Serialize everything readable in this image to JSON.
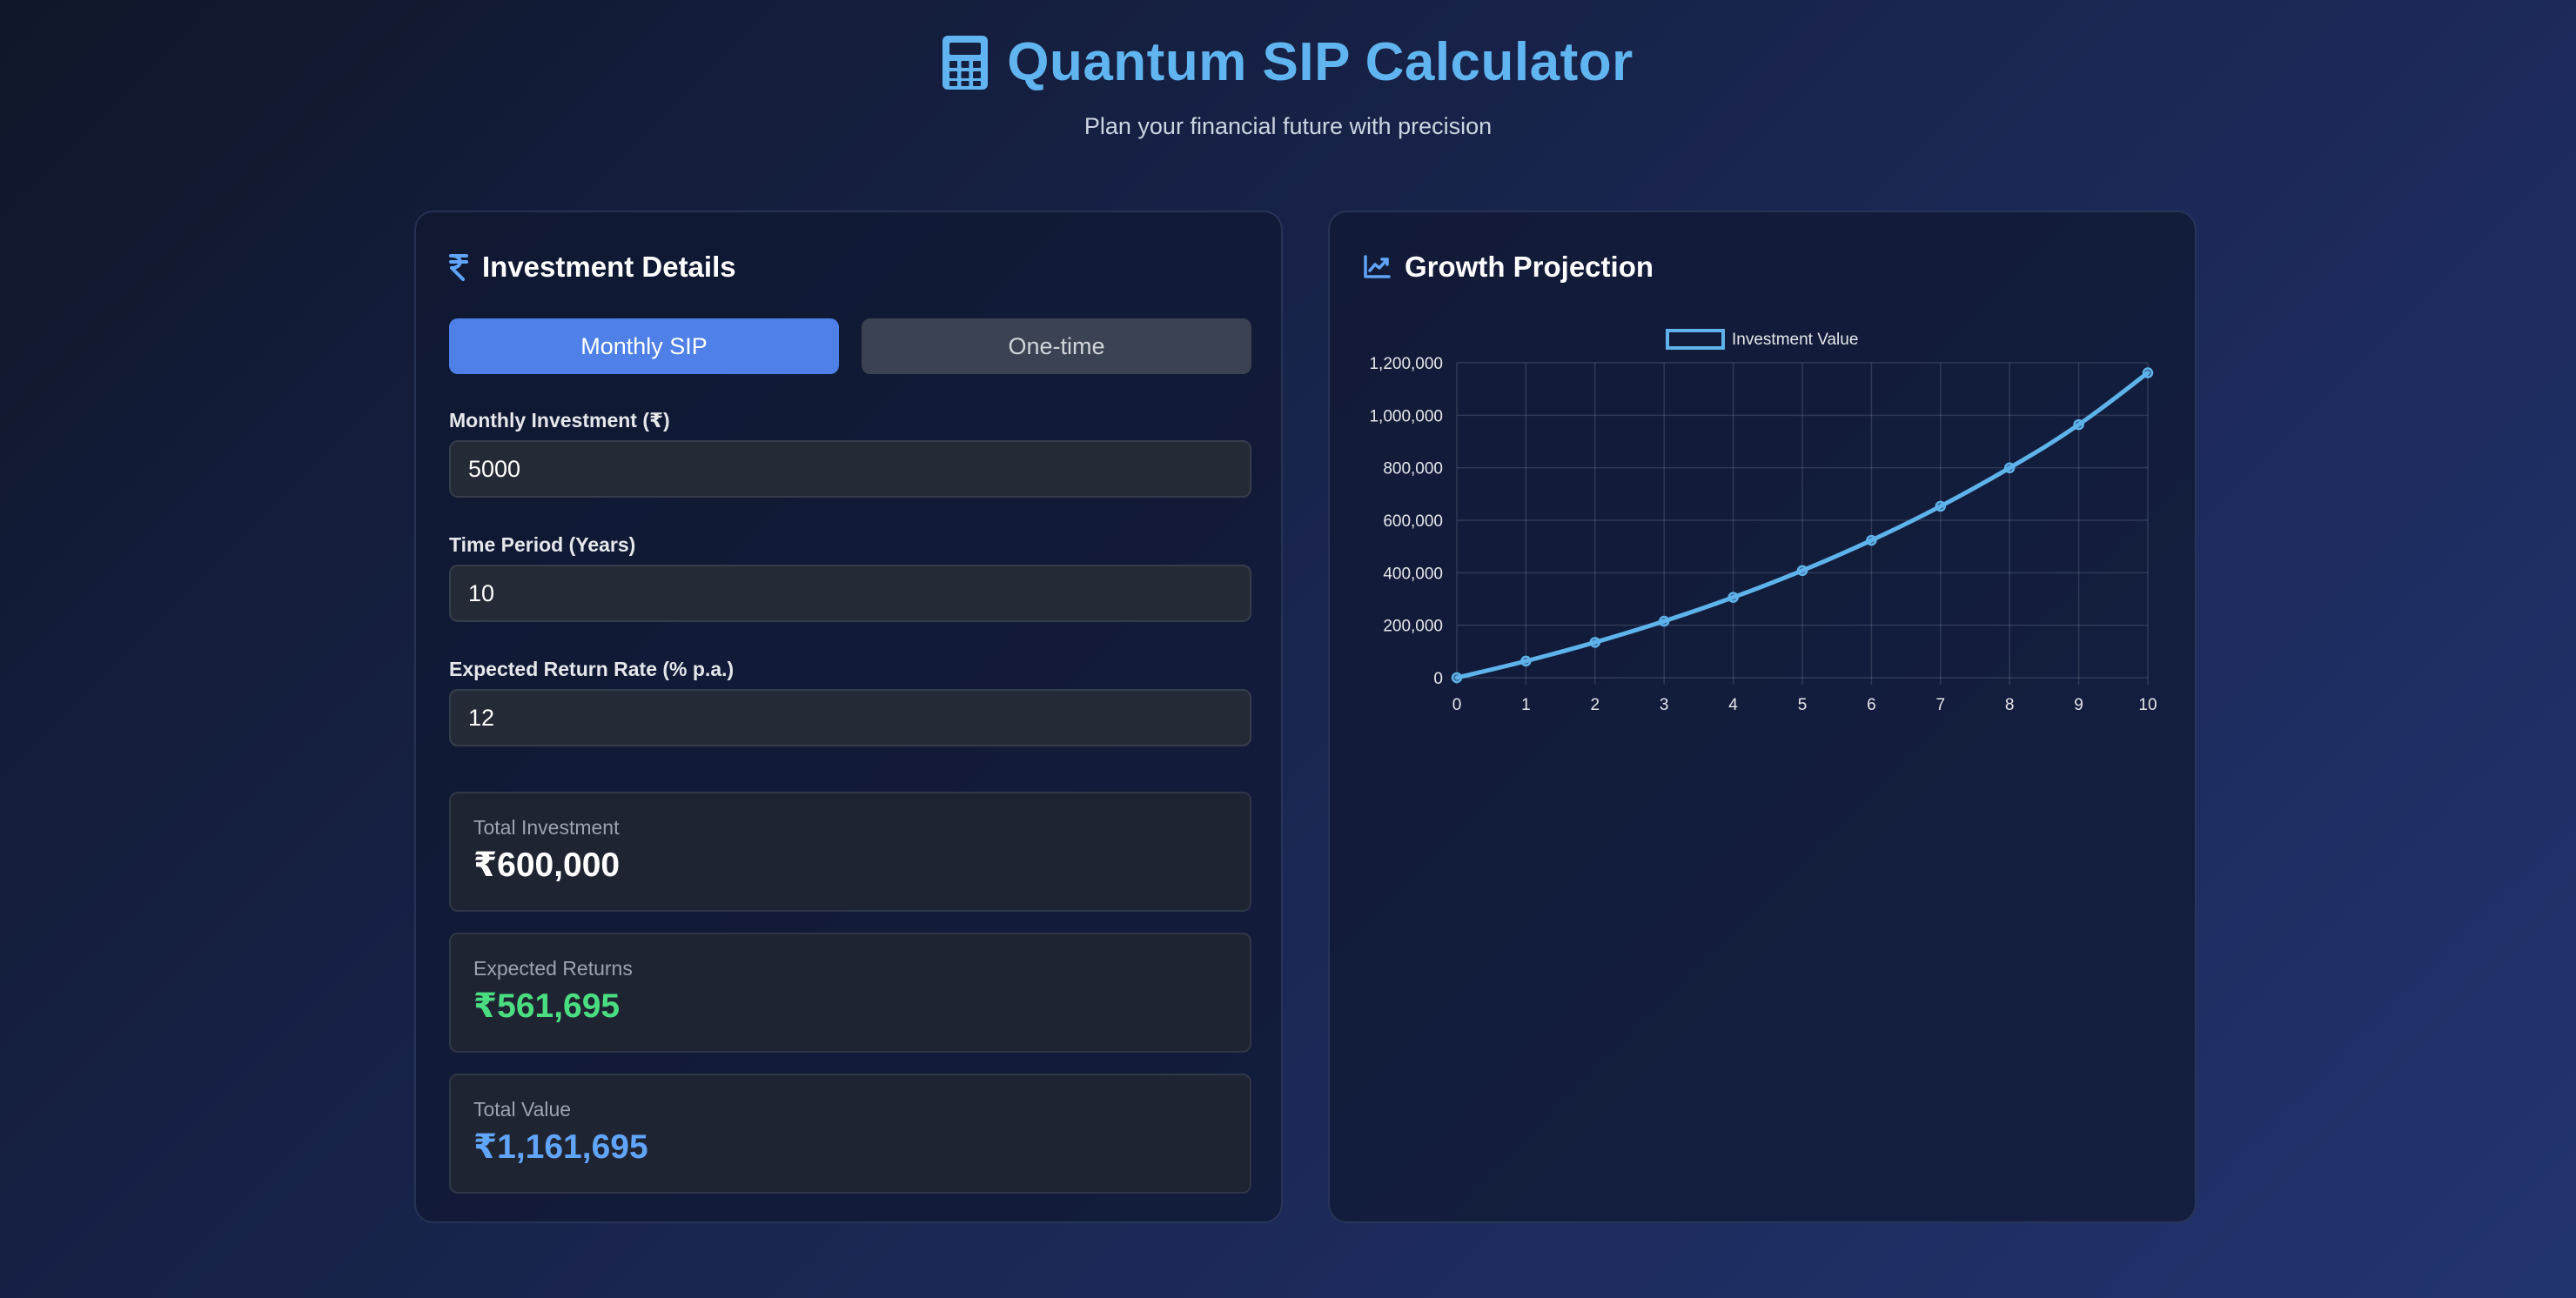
{
  "header": {
    "title": "Quantum SIP Calculator",
    "subtitle": "Plan your financial future with precision",
    "title_icon": "calculator-icon"
  },
  "investment_details": {
    "title": "Investment Details",
    "icon": "rupee-icon",
    "tabs": [
      {
        "label": "Monthly SIP",
        "active": true
      },
      {
        "label": "One-time",
        "active": false
      }
    ],
    "fields": [
      {
        "label": "Monthly Investment (₹)",
        "value": "5000"
      },
      {
        "label": "Time Period (Years)",
        "value": "10"
      },
      {
        "label": "Expected Return Rate (% p.a.)",
        "value": "12"
      }
    ],
    "results": [
      {
        "label": "Total Investment",
        "value": "₹600,000",
        "color": "#ffffff"
      },
      {
        "label": "Expected Returns",
        "value": "₹561,695",
        "color": "#4ade80"
      },
      {
        "label": "Total Value",
        "value": "₹1,161,695",
        "color": "#60a5fa"
      }
    ]
  },
  "growth_projection": {
    "title": "Growth Projection",
    "icon": "chart-line-icon"
  },
  "chart_data": {
    "type": "line",
    "title": "",
    "xlabel": "",
    "ylabel": "",
    "x": [
      0,
      1,
      2,
      3,
      4,
      5,
      6,
      7,
      8,
      9,
      10
    ],
    "series": [
      {
        "name": "Investment Value",
        "color": "#5fb3eb",
        "values": [
          0,
          63412,
          134868,
          215380,
          306108,
          408338,
          523533,
          653337,
          799604,
          964423,
          1161695
        ]
      }
    ],
    "ylim": [
      0,
      1200000
    ],
    "yticks": [
      "0",
      "200,000",
      "400,000",
      "600,000",
      "800,000",
      "1,000,000",
      "1,200,000"
    ],
    "ytick_values": [
      0,
      200000,
      400000,
      600000,
      800000,
      1000000,
      1200000
    ],
    "xticks": [
      "0",
      "1",
      "2",
      "3",
      "4",
      "5",
      "6",
      "7",
      "8",
      "9",
      "10"
    ],
    "grid": true,
    "legend": "top-center"
  }
}
